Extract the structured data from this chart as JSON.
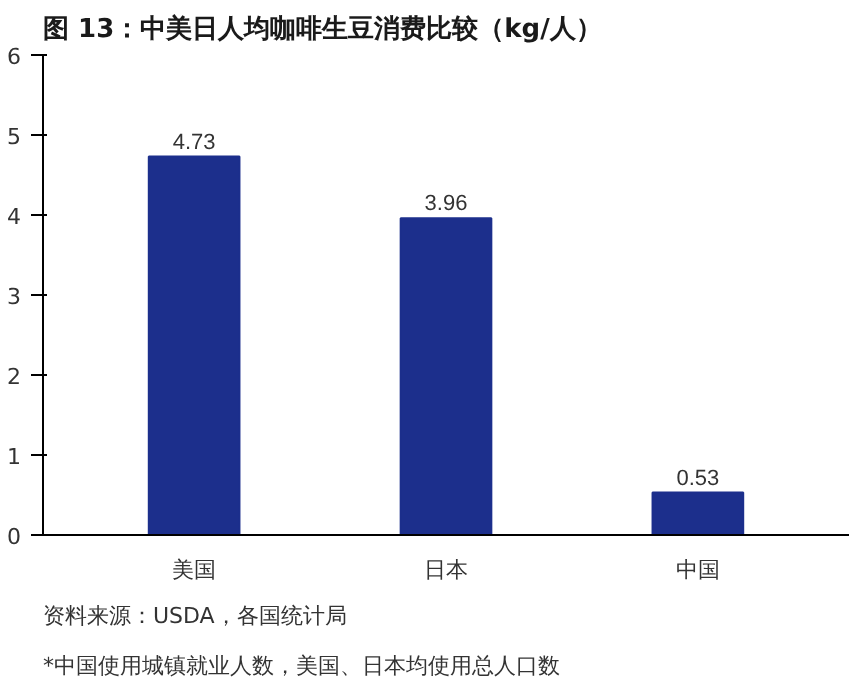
{
  "chart_data": {
    "type": "bar",
    "title": "图 13：中美日人均咖啡生豆消费比较（kg/人）",
    "categories": [
      "美国",
      "日本",
      "中国"
    ],
    "values": [
      4.73,
      3.96,
      0.53
    ],
    "color": "#1c2f8c",
    "ylim": [
      0,
      6
    ],
    "yticks": [
      0,
      1,
      2,
      3,
      4,
      5,
      6
    ],
    "grid": false,
    "data_labels": true,
    "annotations": [
      "资料来源：USDA，各国统计局",
      "*中国使用城镇就业人数，美国、日本均使用总人口数"
    ]
  }
}
